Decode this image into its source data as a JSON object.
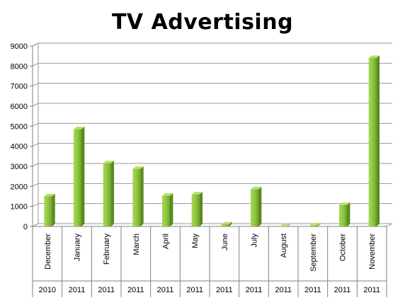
{
  "chart_data": {
    "type": "bar",
    "title": "TV Advertising",
    "xlabel": "",
    "ylabel": "",
    "categories": [
      "December",
      "January",
      "February",
      "March",
      "April",
      "May",
      "June",
      "July",
      "August",
      "September",
      "October",
      "November"
    ],
    "years": [
      "2010",
      "2011",
      "2011",
      "2011",
      "2011",
      "2011",
      "2011",
      "2011",
      "2011",
      "2011",
      "2011",
      "2011"
    ],
    "values": [
      1500,
      4850,
      3150,
      2870,
      1530,
      1600,
      100,
      1850,
      20,
      50,
      1070,
      8400
    ],
    "ylim": [
      0,
      9000
    ],
    "yticks": [
      "0",
      "1000",
      "2000",
      "3000",
      "4000",
      "5000",
      "6000",
      "7000",
      "8000",
      "9000"
    ],
    "grid": true,
    "legend": "none",
    "bar_color": "#8dc63f"
  }
}
